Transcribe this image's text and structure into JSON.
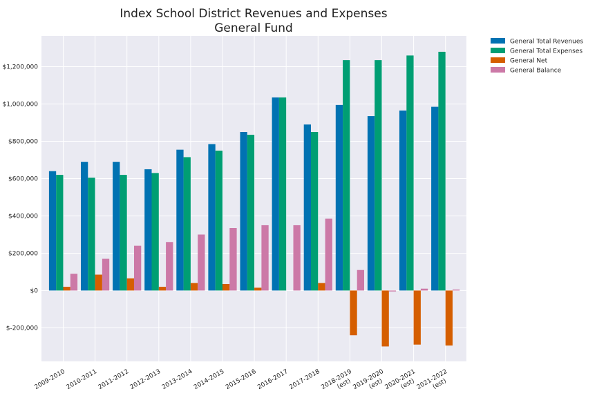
{
  "chart_data": {
    "type": "bar",
    "title": "Index School District Revenues and Expenses",
    "subtitle": "General Fund",
    "xlabel": "",
    "ylabel": "",
    "categories": [
      "2009-2010",
      "2010-2011",
      "2011-2012",
      "2012-2013",
      "2013-2014",
      "2014-2015",
      "2015-2016",
      "2016-2017",
      "2017-2018",
      "2018-2019\n(est)",
      "2019-2020\n(est)",
      "2020-2021\n(est)",
      "2021-2022\n(est)"
    ],
    "series": [
      {
        "name": "General Total Revenues",
        "color": "#0072b2",
        "values": [
          640000,
          690000,
          690000,
          650000,
          755000,
          785000,
          850000,
          1035000,
          890000,
          995000,
          935000,
          965000,
          985000
        ]
      },
      {
        "name": "General Total Expenses",
        "color": "#009e73",
        "values": [
          620000,
          605000,
          620000,
          630000,
          715000,
          750000,
          835000,
          1035000,
          850000,
          1235000,
          1235000,
          1260000,
          1280000
        ]
      },
      {
        "name": "General Net",
        "color": "#d55e00",
        "values": [
          20000,
          85000,
          65000,
          20000,
          40000,
          35000,
          15000,
          0,
          40000,
          -240000,
          -300000,
          -290000,
          -295000
        ]
      },
      {
        "name": "General Balance",
        "color": "#cc79a7",
        "values": [
          90000,
          170000,
          240000,
          260000,
          300000,
          335000,
          350000,
          350000,
          385000,
          110000,
          -5000,
          10000,
          5000
        ]
      }
    ],
    "ylim": [
      -380000,
      1365000
    ],
    "yticks": [
      -200000,
      0,
      200000,
      400000,
      600000,
      800000,
      1000000,
      1200000
    ],
    "ytick_labels": [
      "$-200,000",
      "$0",
      "$200,000",
      "$400,000",
      "$600,000",
      "$800,000",
      "$1,000,000",
      "$1,200,000"
    ],
    "grid": true,
    "legend_position": "outside-top-right",
    "background_color": "#eaeaf2"
  }
}
